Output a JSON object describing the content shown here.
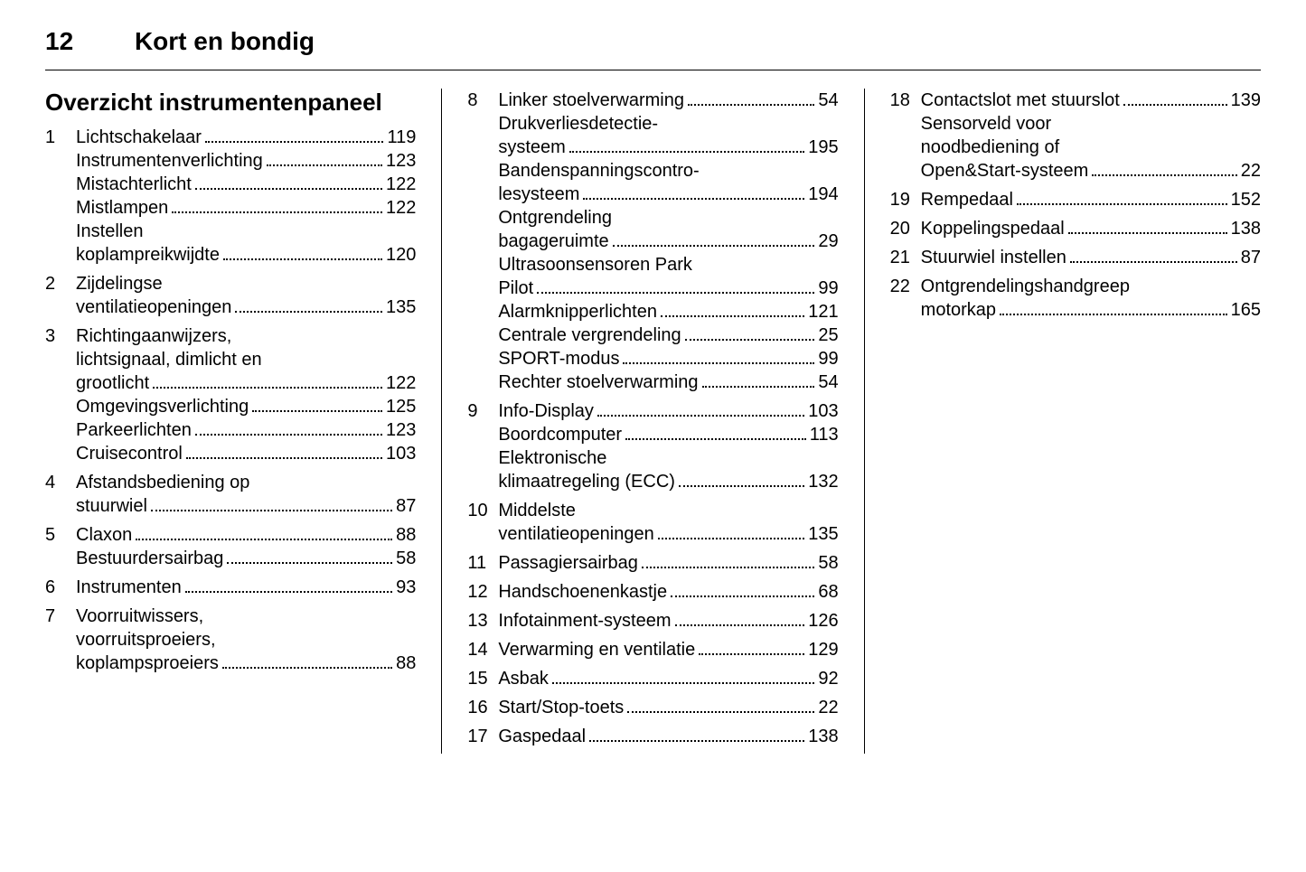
{
  "header": {
    "page_number": "12",
    "chapter": "Kort en bondig"
  },
  "section_title": "Overzicht instrumentenpaneel",
  "columns": [
    [
      {
        "num": "1",
        "lines": [
          {
            "label": "Lichtschakelaar",
            "page": "119"
          },
          {
            "label": "Instrumentenverlichting",
            "page": "123"
          },
          {
            "label": "Mistachterlicht",
            "page": "122"
          },
          {
            "label": "Mistlampen",
            "page": "122"
          },
          {
            "cont": "Instellen"
          },
          {
            "label": "koplampreikwijdte",
            "page": "120"
          }
        ]
      },
      {
        "num": "2",
        "lines": [
          {
            "cont": "Zijdelingse"
          },
          {
            "label": "ventilatieopeningen",
            "page": "135"
          }
        ]
      },
      {
        "num": "3",
        "lines": [
          {
            "cont": "Richtingaanwijzers,"
          },
          {
            "cont": "lichtsignaal, dimlicht en"
          },
          {
            "label": "grootlicht",
            "page": "122"
          },
          {
            "label": "Omgevingsverlichting",
            "page": "125"
          },
          {
            "label": "Parkeerlichten",
            "page": "123"
          },
          {
            "label": "Cruisecontrol",
            "page": "103"
          }
        ]
      },
      {
        "num": "4",
        "lines": [
          {
            "cont": "Afstandsbediening op"
          },
          {
            "label": "stuurwiel",
            "page": "87"
          }
        ]
      },
      {
        "num": "5",
        "lines": [
          {
            "label": "Claxon",
            "page": "88"
          },
          {
            "label": "Bestuurdersairbag",
            "page": "58"
          }
        ]
      },
      {
        "num": "6",
        "lines": [
          {
            "label": "Instrumenten",
            "page": "93"
          }
        ]
      },
      {
        "num": "7",
        "lines": [
          {
            "cont": "Voorruitwissers,"
          },
          {
            "cont": "voorruitsproeiers,"
          },
          {
            "label": "koplampsproeiers",
            "page": "88"
          }
        ]
      }
    ],
    [
      {
        "num": "8",
        "lines": [
          {
            "label": "Linker stoelverwarming",
            "page": "54"
          },
          {
            "cont": "Drukverliesdetectie-"
          },
          {
            "label": "systeem",
            "page": "195"
          },
          {
            "cont": "Bandenspanningscontro-"
          },
          {
            "label": "lesysteem",
            "page": "194"
          },
          {
            "cont": "Ontgrendeling"
          },
          {
            "label": "bagageruimte",
            "page": "29"
          },
          {
            "cont": "Ultrasoonsensoren Park"
          },
          {
            "label": "Pilot",
            "page": "99"
          },
          {
            "label": "Alarmknipperlichten",
            "page": "121"
          },
          {
            "label": "Centrale vergrendeling",
            "page": "25"
          },
          {
            "label": "SPORT-modus",
            "page": "99"
          },
          {
            "label": "Rechter stoelverwarming",
            "page": "54"
          }
        ]
      },
      {
        "num": "9",
        "lines": [
          {
            "label": "Info-Display",
            "page": "103"
          },
          {
            "label": "Boordcomputer",
            "page": "113"
          },
          {
            "cont": "Elektronische"
          },
          {
            "label": "klimaatregeling (ECC)",
            "page": "132"
          }
        ]
      },
      {
        "num": "10",
        "lines": [
          {
            "cont": "Middelste"
          },
          {
            "label": "ventilatieopeningen",
            "page": "135"
          }
        ]
      },
      {
        "num": "11",
        "lines": [
          {
            "label": "Passagiersairbag",
            "page": "58"
          }
        ]
      },
      {
        "num": "12",
        "lines": [
          {
            "label": "Handschoenenkastje",
            "page": "68"
          }
        ]
      },
      {
        "num": "13",
        "lines": [
          {
            "label": "Infotainment-systeem",
            "page": "126"
          }
        ]
      },
      {
        "num": "14",
        "lines": [
          {
            "label": "Verwarming en ventilatie",
            "page": "129"
          }
        ]
      },
      {
        "num": "15",
        "lines": [
          {
            "label": "Asbak",
            "page": "92"
          }
        ]
      },
      {
        "num": "16",
        "lines": [
          {
            "label": "Start/Stop-toets",
            "page": "22"
          }
        ]
      },
      {
        "num": "17",
        "lines": [
          {
            "label": "Gaspedaal",
            "page": "138"
          }
        ]
      }
    ],
    [
      {
        "num": "18",
        "lines": [
          {
            "label": "Contactslot met stuurslot",
            "page": "139"
          },
          {
            "cont": "Sensorveld voor"
          },
          {
            "cont": "noodbediening of"
          },
          {
            "label": "Open&Start-systeem",
            "page": "22"
          }
        ]
      },
      {
        "num": "19",
        "lines": [
          {
            "label": "Rempedaal",
            "page": "152"
          }
        ]
      },
      {
        "num": "20",
        "lines": [
          {
            "label": "Koppelingspedaal",
            "page": "138"
          }
        ]
      },
      {
        "num": "21",
        "lines": [
          {
            "label": "Stuurwiel instellen",
            "page": "87"
          }
        ]
      },
      {
        "num": "22",
        "lines": [
          {
            "cont": "Ontgrendelingshandgreep"
          },
          {
            "label": "motorkap",
            "page": "165"
          }
        ]
      }
    ]
  ]
}
